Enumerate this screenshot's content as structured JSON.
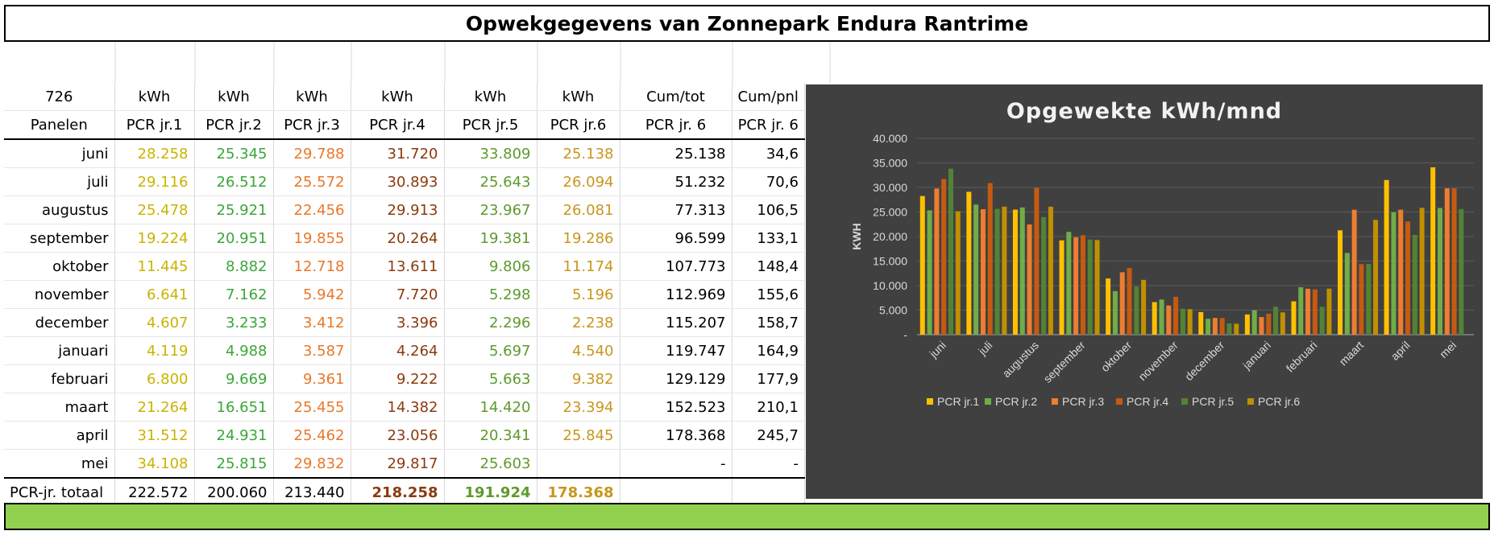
{
  "title": "Opwekgegevens van Zonnepark Endura Rantrime",
  "table": {
    "header1": [
      "726",
      "kWh",
      "kWh",
      "kWh",
      "kWh",
      "kWh",
      "kWh",
      "Cum/tot",
      "Cum/pnl"
    ],
    "header2": [
      "Panelen",
      "PCR jr.1",
      "PCR jr.2",
      "PCR jr.3",
      "PCR jr.4",
      "PCR jr.5",
      "PCR jr.6",
      "PCR jr. 6",
      "PCR jr. 6"
    ],
    "rows": [
      [
        "juni",
        "28.258",
        "25.345",
        "29.788",
        "31.720",
        "33.809",
        "25.138",
        "25.138",
        "34,6"
      ],
      [
        "juli",
        "29.116",
        "26.512",
        "25.572",
        "30.893",
        "25.643",
        "26.094",
        "51.232",
        "70,6"
      ],
      [
        "augustus",
        "25.478",
        "25.921",
        "22.456",
        "29.913",
        "23.967",
        "26.081",
        "77.313",
        "106,5"
      ],
      [
        "september",
        "19.224",
        "20.951",
        "19.855",
        "20.264",
        "19.381",
        "19.286",
        "96.599",
        "133,1"
      ],
      [
        "oktober",
        "11.445",
        "8.882",
        "12.718",
        "13.611",
        "9.806",
        "11.174",
        "107.773",
        "148,4"
      ],
      [
        "november",
        "6.641",
        "7.162",
        "5.942",
        "7.720",
        "5.298",
        "5.196",
        "112.969",
        "155,6"
      ],
      [
        "december",
        "4.607",
        "3.233",
        "3.412",
        "3.396",
        "2.296",
        "2.238",
        "115.207",
        "158,7"
      ],
      [
        "januari",
        "4.119",
        "4.988",
        "3.587",
        "4.264",
        "5.697",
        "4.540",
        "119.747",
        "164,9"
      ],
      [
        "februari",
        "6.800",
        "9.669",
        "9.361",
        "9.222",
        "5.663",
        "9.382",
        "129.129",
        "177,9"
      ],
      [
        "maart",
        "21.264",
        "16.651",
        "25.455",
        "14.382",
        "14.420",
        "23.394",
        "152.523",
        "210,1"
      ],
      [
        "april",
        "31.512",
        "24.931",
        "25.462",
        "23.056",
        "20.341",
        "25.845",
        "178.368",
        "245,7"
      ],
      [
        "mei",
        "34.108",
        "25.815",
        "29.832",
        "29.817",
        "25.603",
        "",
        "-",
        "-"
      ]
    ],
    "total": [
      "PCR-jr. totaal",
      "222.572",
      "200.060",
      "213.440",
      "218.258",
      "191.924",
      "178.368"
    ]
  },
  "chart_data": {
    "type": "bar",
    "title": "Opgewekte kWh/mnd",
    "ylabel": "KWH",
    "xlabel": "",
    "ylim": [
      0,
      40000
    ],
    "yticks": [
      "-",
      "5.000",
      "10.000",
      "15.000",
      "20.000",
      "25.000",
      "30.000",
      "35.000",
      "40.000"
    ],
    "grid": true,
    "legend": "bottom",
    "categories": [
      "juni",
      "juli",
      "augustus",
      "september",
      "oktober",
      "november",
      "december",
      "januari",
      "februari",
      "maart",
      "april",
      "mei"
    ],
    "series": [
      {
        "name": "PCR jr.1",
        "color": "#ffc000",
        "values": [
          28258,
          29116,
          25478,
          19224,
          11445,
          6641,
          4607,
          4119,
          6800,
          21264,
          31512,
          34108
        ]
      },
      {
        "name": "PCR jr.2",
        "color": "#70ad47",
        "values": [
          25345,
          26512,
          25921,
          20951,
          8882,
          7162,
          3233,
          4988,
          9669,
          16651,
          24931,
          25815
        ]
      },
      {
        "name": "PCR jr.3",
        "color": "#ed7d31",
        "values": [
          29788,
          25572,
          22456,
          19855,
          12718,
          5942,
          3412,
          3587,
          9361,
          25455,
          25462,
          29832
        ]
      },
      {
        "name": "PCR jr.4",
        "color": "#c55a11",
        "values": [
          31720,
          30893,
          29913,
          20264,
          13611,
          7720,
          3396,
          4264,
          9222,
          14382,
          23056,
          29817
        ]
      },
      {
        "name": "PCR jr.5",
        "color": "#548235",
        "values": [
          33809,
          25643,
          23967,
          19381,
          9806,
          5298,
          2296,
          5697,
          5663,
          14420,
          20341,
          25603
        ]
      },
      {
        "name": "PCR jr.6",
        "color": "#bf9000",
        "values": [
          25138,
          26094,
          26081,
          19286,
          11174,
          5196,
          2238,
          4540,
          9382,
          23394,
          25845,
          null
        ]
      }
    ]
  }
}
